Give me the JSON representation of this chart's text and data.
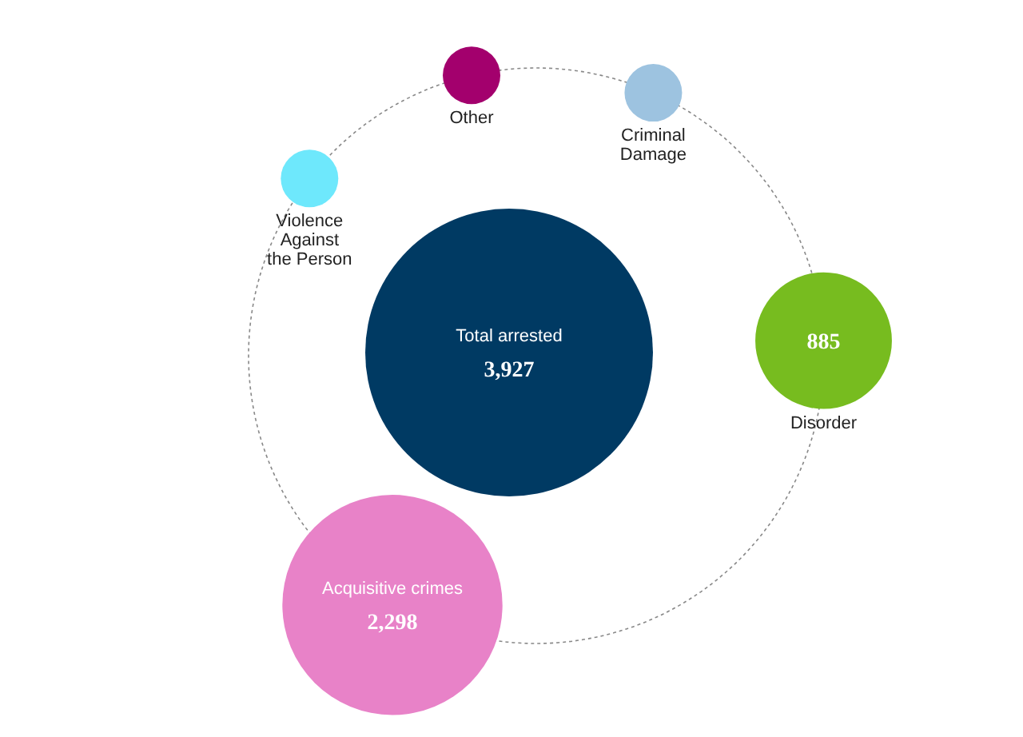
{
  "chart_data": {
    "type": "other",
    "categories": [
      "Total arrested",
      "Disorder",
      "Acquisitive crimes",
      "Other",
      "Criminal Damage",
      "Violence Against the Person"
    ],
    "values": [
      3927,
      885,
      2298,
      null,
      null,
      null
    ],
    "value_labels": [
      "3,927",
      "885",
      "2,298",
      null,
      null,
      null
    ],
    "colors": [
      "#003a63",
      "#77bc1f",
      "#e882c8",
      "#a3006d",
      "#9dc3e0",
      "#6ee8fc"
    ]
  }
}
